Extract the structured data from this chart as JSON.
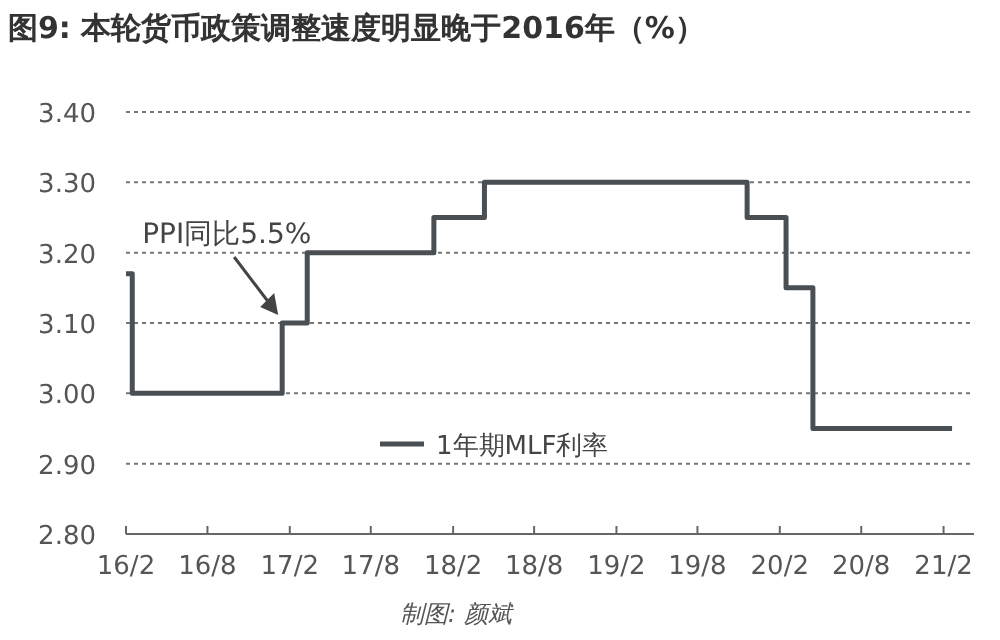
{
  "chart_data": {
    "type": "step",
    "title": "图9: 本轮货币政策调整速度明显晚于2016年（%）",
    "x": [
      "2016-02-01",
      "2016-02-15",
      "2017-01-15",
      "2017-03-12",
      "2017-12-20",
      "2018-03-13",
      "2018-04-12",
      "2019-10-13",
      "2019-11-20",
      "2020-01-18",
      "2020-02-15",
      "2020-03-10",
      "2020-04-15",
      "2021-02-20"
    ],
    "series": [
      {
        "name": "1年期MLF利率",
        "color": "#4a4f54",
        "values": [
          3.17,
          3.0,
          3.1,
          3.2,
          3.25,
          3.25,
          3.3,
          3.3,
          3.25,
          3.25,
          3.15,
          3.15,
          2.95,
          2.95
        ]
      }
    ],
    "xlim": [
      "2016-02-01",
      "2021-04-10"
    ],
    "xticks": [
      {
        "value": "2016-02-01",
        "label": "16/2"
      },
      {
        "value": "2016-08-01",
        "label": "16/8"
      },
      {
        "value": "2017-02-01",
        "label": "17/2"
      },
      {
        "value": "2017-08-01",
        "label": "17/8"
      },
      {
        "value": "2018-02-01",
        "label": "18/2"
      },
      {
        "value": "2018-08-01",
        "label": "18/8"
      },
      {
        "value": "2019-02-01",
        "label": "19/2"
      },
      {
        "value": "2019-08-01",
        "label": "19/8"
      },
      {
        "value": "2020-02-01",
        "label": "20/2"
      },
      {
        "value": "2020-08-01",
        "label": "20/8"
      },
      {
        "value": "2021-02-01",
        "label": "21/2"
      }
    ],
    "ylim": [
      2.8,
      3.4
    ],
    "yticks": [
      {
        "value": 2.8,
        "label": "2.80"
      },
      {
        "value": 2.9,
        "label": "2.90"
      },
      {
        "value": 3.0,
        "label": "3.00"
      },
      {
        "value": 3.1,
        "label": "3.10"
      },
      {
        "value": 3.2,
        "label": "3.20"
      },
      {
        "value": 3.3,
        "label": "3.30"
      },
      {
        "value": 3.4,
        "label": "3.40"
      }
    ],
    "grid": "y",
    "legend": "bottom",
    "annotations": [
      {
        "text": "PPI同比5.5%",
        "x": "2017-01-15",
        "y": 3.1
      },
      "制图: 颜斌"
    ]
  }
}
